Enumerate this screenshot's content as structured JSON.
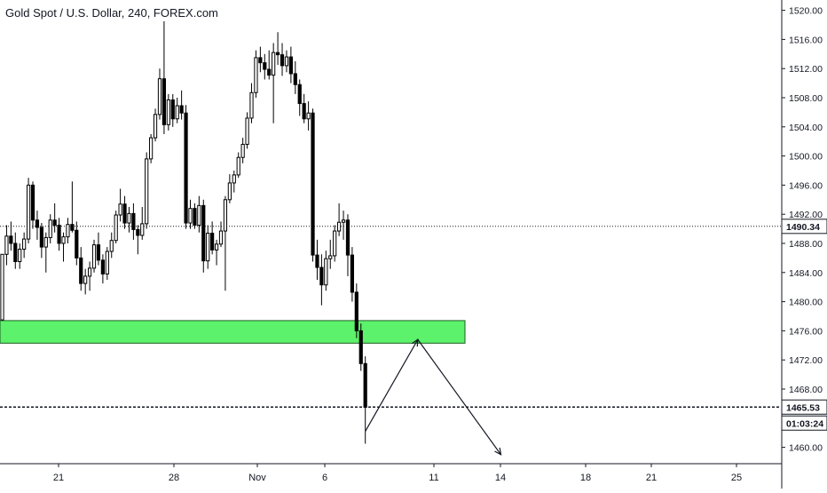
{
  "chart_data": {
    "type": "candlestick",
    "title": "Gold Spot / U.S. Dollar, 240, FOREX.com",
    "ylim": [
      1457.5,
      1522.5
    ],
    "y_ticks": [
      1460,
      1464,
      1468,
      1472,
      1476,
      1480,
      1484,
      1488,
      1492,
      1496,
      1500,
      1504,
      1508,
      1512,
      1516,
      1520
    ],
    "y_tick_labels": [
      "1460.00",
      "1464.00",
      "1468.00",
      "1472.00",
      "1476.00",
      "1480.00",
      "1484.00",
      "1488.00",
      "1492.00",
      "1496.00",
      "1500.00",
      "1504.00",
      "1508.00",
      "1512.00",
      "1516.00",
      "1520.00"
    ],
    "x_tick_labels": [
      "21",
      "28",
      "Nov",
      "6",
      "11",
      "14",
      "18",
      "21",
      "25"
    ],
    "grid": false,
    "up_color": "#000000",
    "down_color": "#000000",
    "zone_color": "#5cf26b",
    "horizontal_lines": [
      {
        "price": 1490.34,
        "label": "1490.34",
        "style": "dotted"
      },
      {
        "price": 1465.53,
        "label": "1465.53",
        "style": "dashed"
      }
    ],
    "countdown_label": "01:03:24",
    "support_zone": {
      "from_price": 1474.3,
      "to_price": 1477.4
    },
    "projection_path": [
      {
        "bar": 0,
        "price": 1462.2
      },
      {
        "bar": 12,
        "price": 1474.8
      },
      {
        "bar": 31,
        "price": 1459.0
      }
    ],
    "candles": [
      [
        1477.5,
        1486.5,
        1477.5,
        1486.5
      ],
      [
        1486.5,
        1490.5,
        1485.0,
        1489.0
      ],
      [
        1489.0,
        1491.0,
        1487.0,
        1488.0
      ],
      [
        1488.0,
        1489.5,
        1484.5,
        1485.5
      ],
      [
        1485.5,
        1488.0,
        1484.5,
        1487.2
      ],
      [
        1487.2,
        1489.5,
        1486.0,
        1488.6
      ],
      [
        1488.6,
        1497.0,
        1488.0,
        1496.0
      ],
      [
        1496.0,
        1496.5,
        1490.0,
        1491.2
      ],
      [
        1491.2,
        1492.5,
        1488.5,
        1490.2
      ],
      [
        1490.2,
        1490.8,
        1486.0,
        1487.5
      ],
      [
        1487.5,
        1489.5,
        1484.0,
        1488.8
      ],
      [
        1488.8,
        1492.0,
        1488.0,
        1491.2
      ],
      [
        1491.2,
        1493.5,
        1489.5,
        1490.5
      ],
      [
        1490.5,
        1491.5,
        1487.0,
        1488.0
      ],
      [
        1488.0,
        1489.5,
        1485.5,
        1488.9
      ],
      [
        1488.9,
        1491.5,
        1488.0,
        1490.6
      ],
      [
        1490.6,
        1496.5,
        1489.5,
        1489.8
      ],
      [
        1489.8,
        1491.0,
        1485.0,
        1486.0
      ],
      [
        1486.0,
        1487.5,
        1481.5,
        1482.5
      ],
      [
        1482.5,
        1484.5,
        1481.0,
        1483.5
      ],
      [
        1483.5,
        1485.5,
        1481.5,
        1484.6
      ],
      [
        1484.6,
        1488.5,
        1484.0,
        1487.8
      ],
      [
        1487.8,
        1489.5,
        1485.0,
        1485.7
      ],
      [
        1485.7,
        1486.5,
        1482.5,
        1483.8
      ],
      [
        1483.8,
        1487.5,
        1483.0,
        1486.9
      ],
      [
        1486.9,
        1489.5,
        1486.0,
        1488.4
      ],
      [
        1488.4,
        1492.5,
        1488.0,
        1491.9
      ],
      [
        1491.9,
        1495.5,
        1491.0,
        1493.4
      ],
      [
        1493.4,
        1494.5,
        1490.0,
        1490.8
      ],
      [
        1490.8,
        1493.0,
        1489.5,
        1492.1
      ],
      [
        1492.1,
        1493.5,
        1488.5,
        1489.9
      ],
      [
        1489.9,
        1490.5,
        1486.5,
        1489.1
      ],
      [
        1489.1,
        1493.0,
        1488.5,
        1490.7
      ],
      [
        1490.7,
        1500.5,
        1490.0,
        1499.6
      ],
      [
        1499.6,
        1503.0,
        1499.0,
        1502.5
      ],
      [
        1502.5,
        1506.5,
        1502.0,
        1505.7
      ],
      [
        1505.7,
        1512.0,
        1505.0,
        1510.6
      ],
      [
        1510.6,
        1518.5,
        1503.0,
        1504.3
      ],
      [
        1504.3,
        1508.5,
        1503.5,
        1507.7
      ],
      [
        1507.7,
        1508.5,
        1504.0,
        1505.1
      ],
      [
        1505.1,
        1508.0,
        1504.5,
        1506.9
      ],
      [
        1506.9,
        1509.0,
        1505.0,
        1505.9
      ],
      [
        1505.9,
        1507.0,
        1490.0,
        1490.8
      ],
      [
        1490.8,
        1494.0,
        1490.0,
        1492.8
      ],
      [
        1492.8,
        1493.5,
        1490.0,
        1490.5
      ],
      [
        1490.5,
        1494.5,
        1489.5,
        1493.2
      ],
      [
        1493.2,
        1494.0,
        1484.0,
        1485.6
      ],
      [
        1485.6,
        1490.5,
        1484.5,
        1489.4
      ],
      [
        1489.4,
        1491.0,
        1486.5,
        1487.1
      ],
      [
        1487.1,
        1488.5,
        1485.0,
        1487.9
      ],
      [
        1487.9,
        1491.0,
        1487.5,
        1489.7
      ],
      [
        1489.7,
        1494.5,
        1481.5,
        1494.0
      ],
      [
        1494.0,
        1497.5,
        1493.5,
        1496.3
      ],
      [
        1496.3,
        1498.0,
        1495.0,
        1497.4
      ],
      [
        1497.4,
        1500.5,
        1497.0,
        1499.8
      ],
      [
        1499.8,
        1502.5,
        1499.0,
        1501.6
      ],
      [
        1501.6,
        1506.0,
        1501.0,
        1505.2
      ],
      [
        1505.2,
        1510.0,
        1504.5,
        1508.7
      ],
      [
        1508.7,
        1514.5,
        1508.0,
        1513.5
      ],
      [
        1513.5,
        1515.0,
        1511.5,
        1512.8
      ],
      [
        1512.8,
        1514.0,
        1510.5,
        1511.9
      ],
      [
        1511.9,
        1514.5,
        1510.5,
        1511.1
      ],
      [
        1511.1,
        1515.5,
        1504.5,
        1514.2
      ],
      [
        1514.2,
        1517.0,
        1512.5,
        1513.9
      ],
      [
        1513.9,
        1515.5,
        1511.0,
        1512.4
      ],
      [
        1512.4,
        1514.5,
        1511.5,
        1513.6
      ],
      [
        1513.6,
        1515.0,
        1510.0,
        1511.3
      ],
      [
        1511.3,
        1513.0,
        1508.5,
        1509.8
      ],
      [
        1509.8,
        1510.5,
        1505.5,
        1507.2
      ],
      [
        1507.2,
        1508.5,
        1504.5,
        1505.1
      ],
      [
        1505.1,
        1507.5,
        1503.5,
        1505.9
      ],
      [
        1505.9,
        1506.5,
        1485.5,
        1486.4
      ],
      [
        1486.4,
        1488.5,
        1483.0,
        1484.7
      ],
      [
        1484.7,
        1486.5,
        1479.5,
        1482.3
      ],
      [
        1482.3,
        1487.0,
        1481.5,
        1485.9
      ],
      [
        1485.9,
        1488.5,
        1484.5,
        1486.3
      ],
      [
        1486.3,
        1490.5,
        1485.5,
        1489.7
      ],
      [
        1489.7,
        1493.5,
        1489.0,
        1490.9
      ],
      [
        1490.9,
        1492.5,
        1488.5,
        1491.2
      ],
      [
        1491.2,
        1492.0,
        1483.5,
        1486.4
      ],
      [
        1486.4,
        1487.5,
        1480.0,
        1481.3
      ],
      [
        1481.3,
        1482.5,
        1475.0,
        1476.0
      ],
      [
        1476.0,
        1477.0,
        1470.5,
        1471.5
      ],
      [
        1471.5,
        1472.5,
        1460.5,
        1465.5
      ]
    ]
  }
}
